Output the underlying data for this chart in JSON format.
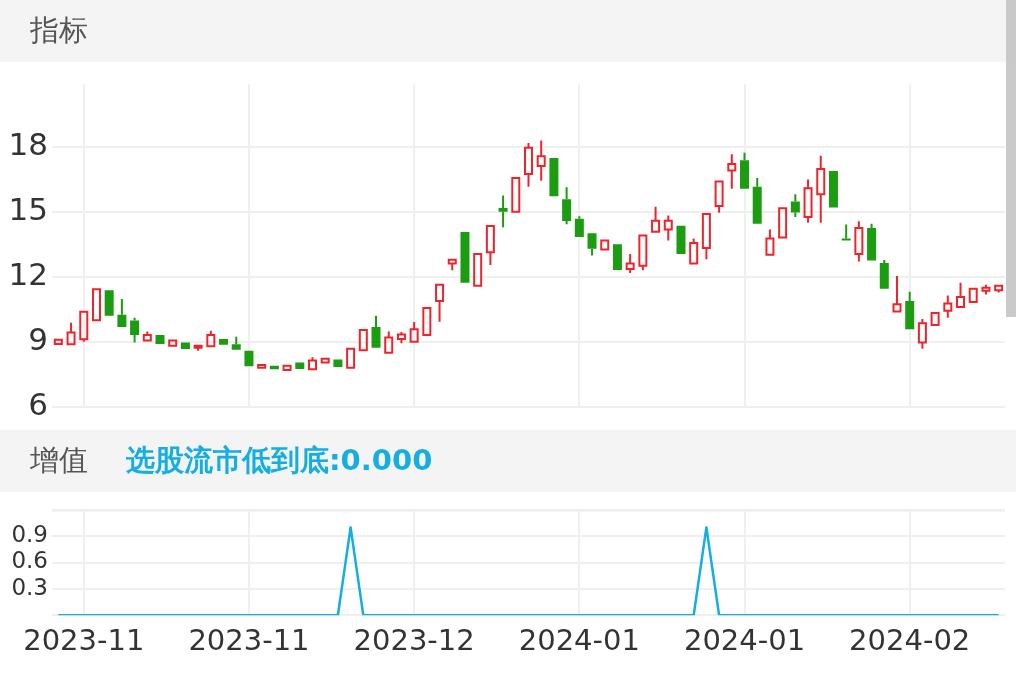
{
  "chart_data": [
    {
      "type": "candlestick",
      "title": "指标",
      "categories": [
        null,
        null,
        "2023-11",
        null,
        null,
        null,
        null,
        null,
        null,
        null,
        null,
        null,
        null,
        null,
        null,
        "2023-11",
        null,
        null,
        null,
        null,
        null,
        null,
        null,
        null,
        null,
        null,
        null,
        null,
        "2023-12",
        null,
        null,
        null,
        null,
        null,
        null,
        null,
        null,
        null,
        null,
        null,
        null,
        "2024-01",
        null,
        null,
        null,
        null,
        null,
        null,
        null,
        null,
        null,
        null,
        null,
        null,
        "2024-01",
        null,
        null,
        null,
        null,
        null,
        null,
        null,
        null,
        null,
        null,
        null,
        null,
        "2024-02",
        null,
        null,
        null,
        null,
        null,
        null,
        null
      ],
      "ohlc": [
        [
          8.93,
          9.12,
          8.93,
          9.12
        ],
        [
          8.92,
          9.91,
          8.92,
          9.46
        ],
        [
          9.14,
          10.42,
          9.03,
          10.42
        ],
        [
          10.02,
          11.45,
          10.02,
          11.45
        ],
        [
          11.41,
          11.41,
          10.23,
          10.23
        ],
        [
          10.28,
          11.0,
          9.71,
          9.71
        ],
        [
          10.01,
          10.14,
          8.99,
          9.34
        ],
        [
          9.09,
          9.5,
          9.03,
          9.34
        ],
        [
          9.34,
          9.34,
          8.93,
          8.93
        ],
        [
          8.85,
          9.09,
          8.85,
          9.09
        ],
        [
          9.0,
          9.0,
          8.69,
          8.69
        ],
        [
          8.77,
          8.85,
          8.62,
          8.85
        ],
        [
          8.82,
          9.54,
          8.82,
          9.34
        ],
        [
          9.16,
          9.16,
          8.89,
          8.89
        ],
        [
          8.92,
          9.26,
          8.66,
          8.66
        ],
        [
          8.62,
          8.62,
          7.9,
          7.9
        ],
        [
          7.83,
          7.96,
          7.83,
          7.96
        ],
        [
          7.92,
          7.92,
          7.76,
          7.76
        ],
        [
          7.73,
          7.92,
          7.73,
          7.92
        ],
        [
          8.07,
          8.07,
          7.77,
          7.77
        ],
        [
          7.76,
          8.32,
          7.76,
          8.17
        ],
        [
          8.07,
          8.25,
          8.07,
          8.25
        ],
        [
          8.21,
          8.21,
          7.87,
          7.87
        ],
        [
          7.83,
          8.71,
          7.83,
          8.71
        ],
        [
          8.64,
          9.57,
          8.64,
          9.57
        ],
        [
          9.71,
          10.23,
          8.75,
          8.75
        ],
        [
          8.52,
          9.5,
          8.52,
          9.23
        ],
        [
          9.16,
          9.48,
          8.96,
          9.37
        ],
        [
          9.03,
          9.94,
          9.03,
          9.61
        ],
        [
          9.34,
          10.59,
          9.34,
          10.59
        ],
        [
          10.91,
          11.66,
          9.95,
          11.66
        ],
        [
          12.64,
          12.82,
          12.33,
          12.82
        ],
        [
          14.1,
          14.1,
          11.75,
          11.75
        ],
        [
          11.62,
          13.08,
          11.62,
          13.08
        ],
        [
          13.16,
          14.37,
          12.57,
          14.37
        ],
        [
          15.2,
          15.78,
          14.32,
          15.03
        ],
        [
          15.03,
          16.59,
          15.03,
          16.59
        ],
        [
          16.77,
          18.2,
          16.18,
          17.98
        ],
        [
          17.14,
          18.32,
          16.46,
          17.59
        ],
        [
          17.51,
          17.51,
          15.75,
          15.75
        ],
        [
          15.61,
          16.16,
          14.45,
          14.6
        ],
        [
          14.71,
          14.82,
          13.87,
          13.87
        ],
        [
          14.04,
          14.04,
          13.01,
          13.32
        ],
        [
          13.29,
          13.7,
          13.29,
          13.7
        ],
        [
          13.53,
          13.53,
          12.34,
          12.34
        ],
        [
          12.39,
          13.08,
          12.2,
          12.64
        ],
        [
          12.54,
          13.93,
          12.33,
          13.93
        ],
        [
          14.11,
          15.26,
          14.11,
          14.62
        ],
        [
          14.21,
          14.86,
          13.7,
          14.62
        ],
        [
          14.38,
          14.38,
          13.08,
          13.08
        ],
        [
          12.64,
          13.8,
          12.64,
          13.59
        ],
        [
          13.36,
          14.93,
          12.84,
          14.93
        ],
        [
          15.3,
          16.43,
          14.98,
          16.43
        ],
        [
          16.93,
          17.68,
          16.09,
          17.23
        ],
        [
          17.41,
          17.75,
          16.09,
          16.09
        ],
        [
          16.18,
          16.59,
          14.48,
          14.48
        ],
        [
          13.05,
          14.21,
          13.05,
          13.8
        ],
        [
          13.84,
          15.19,
          13.84,
          15.19
        ],
        [
          15.5,
          15.84,
          14.79,
          15.0
        ],
        [
          14.79,
          16.52,
          14.52,
          16.12
        ],
        [
          15.84,
          17.62,
          14.52,
          17.0
        ],
        [
          16.91,
          16.91,
          15.23,
          15.23
        ],
        [
          13.8,
          14.44,
          13.7,
          13.7
        ],
        [
          13.08,
          14.59,
          12.73,
          14.28
        ],
        [
          14.28,
          14.48,
          12.78,
          12.78
        ],
        [
          12.67,
          12.8,
          11.48,
          11.48
        ],
        [
          10.43,
          12.07,
          10.43,
          10.76
        ],
        [
          10.91,
          11.34,
          9.61,
          9.61
        ],
        [
          8.99,
          10.08,
          8.71,
          9.89
        ],
        [
          9.8,
          10.36,
          9.8,
          10.36
        ],
        [
          10.46,
          11.17,
          10.14,
          10.8
        ],
        [
          10.64,
          11.75,
          10.64,
          11.1
        ],
        [
          10.87,
          11.48,
          10.87,
          11.48
        ],
        [
          11.39,
          11.66,
          11.21,
          11.52
        ],
        [
          11.41,
          11.66,
          11.3,
          11.62
        ]
      ],
      "colors": [
        "#f0232b",
        "#f0232b",
        "#f0232b",
        "#f0232b",
        "#1c9c10",
        "#1c9c10",
        "#1c9c10",
        "#f0232b",
        "#1c9c10",
        "#f0232b",
        "#1c9c10",
        "#f0232b",
        "#f0232b",
        "#1c9c10",
        "#1c9c10",
        "#1c9c10",
        "#f0232b",
        "#1c9c10",
        "#f0232b",
        "#1c9c10",
        "#f0232b",
        "#f0232b",
        "#1c9c10",
        "#f0232b",
        "#f0232b",
        "#1c9c10",
        "#f0232b",
        "#f0232b",
        "#f0232b",
        "#f0232b",
        "#f0232b",
        "#f0232b",
        "#1c9c10",
        "#f0232b",
        "#f0232b",
        "#1c9c10",
        "#f0232b",
        "#f0232b",
        "#f0232b",
        "#1c9c10",
        "#1c9c10",
        "#1c9c10",
        "#1c9c10",
        "#f0232b",
        "#1c9c10",
        "#f0232b",
        "#f0232b",
        "#f0232b",
        "#f0232b",
        "#1c9c10",
        "#f0232b",
        "#f0232b",
        "#f0232b",
        "#f0232b",
        "#1c9c10",
        "#1c9c10",
        "#f0232b",
        "#f0232b",
        "#1c9c10",
        "#f0232b",
        "#f0232b",
        "#1c9c10",
        "#1c9c10",
        "#f0232b",
        "#1c9c10",
        "#1c9c10",
        "#f0232b",
        "#1c9c10",
        "#f0232b",
        "#f0232b",
        "#f0232b",
        "#f0232b",
        "#f0232b",
        "#f0232b",
        "#f0232b"
      ],
      "ylim": [
        6,
        20.9
      ],
      "yticks": [
        6,
        9,
        12,
        15,
        18
      ],
      "grid": true,
      "tick_labels": "y"
    },
    {
      "type": "line",
      "title": "增值",
      "categories": [
        null,
        null,
        "2023-11",
        null,
        null,
        null,
        null,
        null,
        null,
        null,
        null,
        null,
        null,
        null,
        null,
        "2023-11",
        null,
        null,
        null,
        null,
        null,
        null,
        null,
        null,
        null,
        null,
        null,
        null,
        "2023-12",
        null,
        null,
        null,
        null,
        null,
        null,
        null,
        null,
        null,
        null,
        null,
        null,
        "2024-01",
        null,
        null,
        null,
        null,
        null,
        null,
        null,
        null,
        null,
        null,
        null,
        null,
        "2024-01",
        null,
        null,
        null,
        null,
        null,
        null,
        null,
        null,
        null,
        null,
        null,
        null,
        "2024-02",
        null,
        null,
        null,
        null,
        null,
        null,
        null
      ],
      "series": [
        {
          "name": "选股流市低到底:0.000",
          "color": "#14aee0",
          "values": [
            0,
            0,
            0,
            0,
            0,
            0,
            0,
            0,
            0,
            0,
            0,
            0,
            0,
            0,
            0,
            0,
            0,
            0,
            0,
            0,
            0,
            0,
            0,
            1,
            0,
            0,
            0,
            0,
            0,
            0,
            0,
            0,
            0,
            0,
            0,
            0,
            0,
            0,
            0,
            0,
            0,
            0,
            0,
            0,
            0,
            0,
            0,
            0,
            0,
            0,
            0,
            1,
            0,
            0,
            0,
            0,
            0,
            0,
            0,
            0,
            0,
            0,
            0,
            0,
            0,
            0,
            0,
            0,
            0,
            0,
            0,
            0,
            0,
            0,
            0
          ]
        }
      ],
      "ylim": [
        0,
        1.2
      ],
      "yticks": [
        {
          "value": 0,
          "label": null
        },
        0.3,
        0.6,
        0.9,
        {
          "value": 1.2,
          "label": null
        }
      ],
      "grid": true,
      "legend": "top left",
      "marker": "none"
    }
  ]
}
